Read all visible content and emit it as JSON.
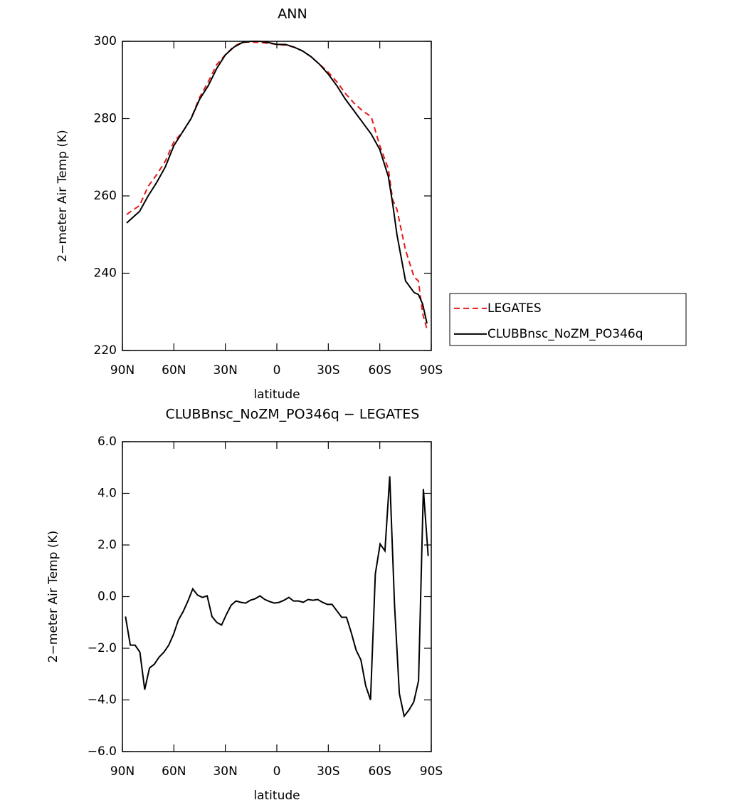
{
  "chart_data": [
    {
      "type": "line",
      "title": "ANN",
      "xlabel": "latitude",
      "ylabel": "2−meter Air Temp (K)",
      "xlim": [
        90,
        -90
      ],
      "ylim": [
        220,
        300
      ],
      "xticks": [
        {
          "value": 90,
          "label": "90N"
        },
        {
          "value": 60,
          "label": "60N"
        },
        {
          "value": 30,
          "label": "30N"
        },
        0,
        {
          "value": -30,
          "label": "30S"
        },
        {
          "value": -60,
          "label": "60S"
        },
        {
          "value": -90,
          "label": "90S"
        }
      ],
      "yticks": [
        220,
        240,
        260,
        280,
        300
      ],
      "legend": "right",
      "x": [
        87.5,
        85,
        80,
        75,
        70,
        65,
        60,
        55,
        50,
        45,
        40,
        35,
        30,
        25,
        20,
        15,
        10,
        5,
        0,
        -5,
        -10,
        -15,
        -20,
        -25,
        -30,
        -35,
        -40,
        -45,
        -50,
        -55,
        -60,
        -65,
        -67.5,
        -70,
        -75,
        -80,
        -82.5,
        -85,
        -87.5
      ],
      "series": [
        {
          "name": "LEGATES",
          "color": "#e41a1c",
          "style": "dashed",
          "values": [
            255.2,
            256,
            257.5,
            262.5,
            265.5,
            269,
            274,
            276.5,
            280,
            285.5,
            289.5,
            294,
            296.5,
            298.7,
            299.8,
            299.8,
            299.7,
            299.5,
            299.2,
            299,
            298.5,
            297.5,
            296,
            294,
            292,
            289.5,
            286.5,
            284,
            282,
            280.5,
            273,
            267,
            259,
            256.5,
            246,
            239,
            238,
            229.5,
            225.5
          ]
        },
        {
          "name": "CLUBBnsc_NoZM_PO346q",
          "color": "#000000",
          "style": "solid",
          "values": [
            253,
            254,
            256,
            260,
            263.5,
            267.5,
            273,
            276.5,
            280,
            285,
            288.5,
            293,
            296.5,
            298.5,
            299.7,
            300,
            300,
            299.7,
            299.2,
            299.2,
            298.5,
            297.5,
            296,
            294,
            291.5,
            288.5,
            285,
            282,
            279,
            276,
            272,
            265,
            258,
            250,
            238,
            235,
            234.5,
            232,
            227
          ]
        }
      ]
    },
    {
      "type": "line",
      "title": "CLUBBnsc_NoZM_PO346q − LEGATES",
      "xlabel": "latitude",
      "ylabel": "2−meter Air Temp (K)",
      "xlim": [
        90,
        -90
      ],
      "ylim": [
        -6,
        6
      ],
      "xticks": [
        {
          "value": 90,
          "label": "90N"
        },
        {
          "value": 60,
          "label": "60N"
        },
        {
          "value": 30,
          "label": "30N"
        },
        0,
        {
          "value": -30,
          "label": "30S"
        },
        {
          "value": -60,
          "label": "60S"
        },
        {
          "value": -90,
          "label": "90S"
        }
      ],
      "yticks": [
        {
          "value": -6,
          "label": "−6.0"
        },
        {
          "value": -4,
          "label": "−4.0"
        },
        {
          "value": -2,
          "label": "−2.0"
        },
        {
          "value": 0,
          "label": "0.0"
        },
        {
          "value": 2,
          "label": "2.0"
        },
        {
          "value": 4,
          "label": "4.0"
        },
        {
          "value": 6,
          "label": "6.0"
        }
      ],
      "x": [
        88.2,
        85.4,
        82.6,
        79.8,
        77.0,
        74.2,
        71.4,
        68.6,
        65.8,
        63.0,
        60.2,
        57.4,
        54.6,
        51.8,
        49.0,
        46.2,
        43.4,
        40.6,
        37.8,
        35.0,
        32.2,
        29.4,
        26.6,
        23.8,
        21.0,
        18.2,
        15.4,
        12.6,
        9.8,
        7.0,
        4.2,
        1.4,
        -1.4,
        -4.2,
        -7.0,
        -9.8,
        -12.6,
        -15.4,
        -18.2,
        -21.0,
        -23.8,
        -26.6,
        -29.4,
        -32.2,
        -35.0,
        -37.8,
        -40.6,
        -43.4,
        -46.2,
        -49.0,
        -51.8,
        -54.6,
        -57.4,
        -60.2,
        -63.0,
        -65.8,
        -68.6,
        -71.4,
        -74.2,
        -77.0,
        -79.8,
        -82.6,
        -85.4,
        -88.2
      ],
      "series": [
        {
          "color": "#000000",
          "style": "solid",
          "values": [
            -0.77,
            -1.88,
            -1.88,
            -2.15,
            -3.6,
            -2.76,
            -2.62,
            -2.34,
            -2.15,
            -1.88,
            -1.46,
            -0.91,
            -0.58,
            -0.17,
            0.3,
            0.06,
            -0.03,
            0.03,
            -0.77,
            -1.0,
            -1.1,
            -0.69,
            -0.33,
            -0.17,
            -0.22,
            -0.25,
            -0.14,
            -0.08,
            0.03,
            -0.11,
            -0.19,
            -0.25,
            -0.22,
            -0.14,
            -0.03,
            -0.17,
            -0.17,
            -0.22,
            -0.11,
            -0.14,
            -0.11,
            -0.22,
            -0.3,
            -0.3,
            -0.55,
            -0.8,
            -0.8,
            -1.4,
            -2.07,
            -2.45,
            -3.45,
            -4.0,
            0.88,
            2.04,
            1.77,
            4.66,
            -0.33,
            -3.75,
            -4.63,
            -4.39,
            -4.08,
            -3.26,
            4.17,
            1.57
          ]
        }
      ]
    }
  ]
}
